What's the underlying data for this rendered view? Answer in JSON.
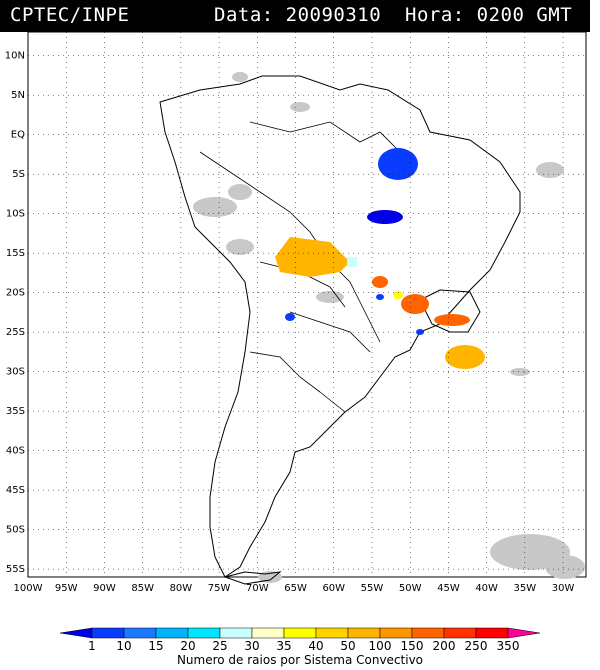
{
  "header": {
    "source": "CPTEC/INPE",
    "datetime": "Data: 20090310  Hora: 0200 GMT"
  },
  "map": {
    "lat_labels": [
      "10N",
      "5N",
      "EQ",
      "5S",
      "10S",
      "15S",
      "20S",
      "25S",
      "30S",
      "35S",
      "40S",
      "45S",
      "50S",
      "55S"
    ],
    "lat_values": [
      10,
      5,
      0,
      -5,
      -10,
      -15,
      -20,
      -25,
      -30,
      -35,
      -40,
      -45,
      -50,
      -55
    ],
    "lon_labels": [
      "100W",
      "95W",
      "90W",
      "85W",
      "80W",
      "75W",
      "70W",
      "65W",
      "60W",
      "55W",
      "50W",
      "45W",
      "40W",
      "35W",
      "30W"
    ],
    "lon_values": [
      -100,
      -95,
      -90,
      -85,
      -80,
      -75,
      -70,
      -65,
      -60,
      -55,
      -50,
      -45,
      -40,
      -35,
      -30
    ],
    "lat_range": [
      -56,
      13
    ],
    "lon_range": [
      -100,
      -27
    ],
    "land_color": "#ffffff",
    "cloud_color": "#c8c8c8",
    "border_color": "#000000"
  },
  "legend": {
    "title": "Numero de raios por Sistema Convectivo",
    "labels": [
      "1",
      "10",
      "15",
      "20",
      "25",
      "30",
      "35",
      "40",
      "50",
      "100",
      "150",
      "200",
      "250",
      "350"
    ],
    "colors": [
      "#0000e6",
      "#0a3cff",
      "#1e78ff",
      "#00b4ff",
      "#00e6ff",
      "#c8ffff",
      "#ffffc8",
      "#ffff00",
      "#ffd200",
      "#ffb400",
      "#ff9600",
      "#ff6400",
      "#ff3200",
      "#ff0000",
      "#ff0096"
    ]
  }
}
